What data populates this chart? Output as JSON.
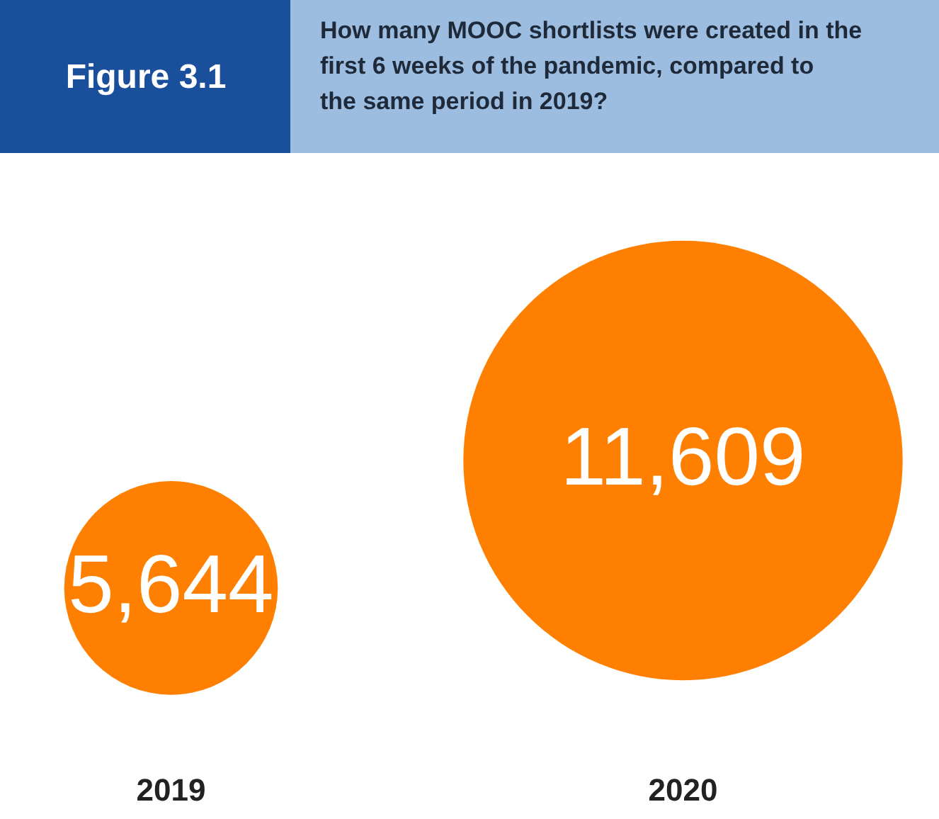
{
  "chart_data": {
    "type": "other",
    "title": "Figure 3.1",
    "subtitle": "How many MOOC shortlists were created in the first 6 weeks of the pandemic, compared to the same period in 2019?",
    "categories": [
      "2019",
      "2020"
    ],
    "values": [
      5644,
      11609
    ],
    "colors": [
      "#ff7f00",
      "#ff7f00"
    ],
    "value_labels": [
      "5,644",
      "11,609"
    ]
  }
}
